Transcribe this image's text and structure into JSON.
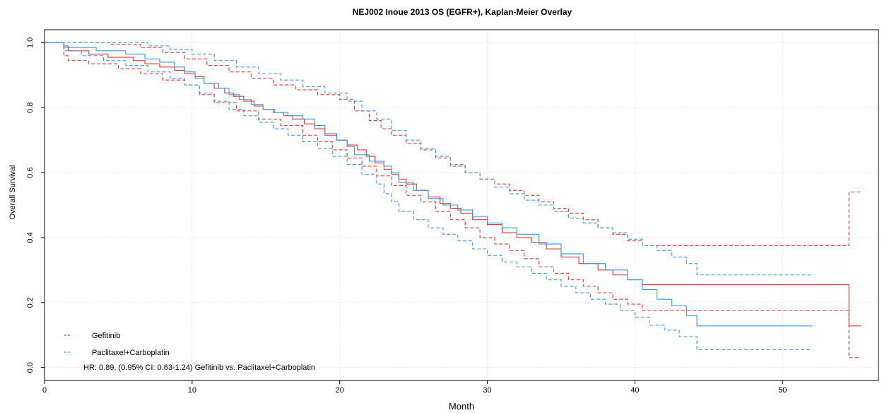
{
  "chart_data": {
    "type": "line",
    "title": "NEJ002 Inoue 2013 OS (EGFR+), Kaplan-Meier Overlay",
    "xlabel": "Month",
    "ylabel": "Overall Survival",
    "xlim": [
      0,
      56.5
    ],
    "ylim": [
      -0.04,
      1.04
    ],
    "xticks": [
      0,
      10,
      20,
      30,
      40,
      50
    ],
    "xtick_labels": [
      "0",
      "10",
      "20",
      "30",
      "40",
      "50"
    ],
    "yticks": [
      0.0,
      0.2,
      0.4,
      0.6,
      0.8,
      1.0
    ],
    "ytick_labels": [
      "0.0",
      "0.2",
      "0.4",
      "0.6",
      "0.8",
      "1.0"
    ],
    "grid": true,
    "legend_position": "bottom-left",
    "annotation": "HR: 0.89, (0.95% CI: 0.63-1.24) Gefitinib vs. Paclitaxel+Carboplatin",
    "series": [
      {
        "name": "Gefitinib",
        "color": "#ee3333",
        "style": "step",
        "x": [
          0,
          1.3,
          1.6,
          3.0,
          4.3,
          6.0,
          6.8,
          7.8,
          8.8,
          9.5,
          10.2,
          10.8,
          11.5,
          12.2,
          12.8,
          13.5,
          14.2,
          14.8,
          15.5,
          16.2,
          16.8,
          17.6,
          18.3,
          19.0,
          19.8,
          20.5,
          21.2,
          21.8,
          22.4,
          23.0,
          23.5,
          24.0,
          24.5,
          25.2,
          26.0,
          26.8,
          27.5,
          28.2,
          29.0,
          30.0,
          31.0,
          32.0,
          33.0,
          34.0,
          35.0,
          36.2,
          37.5,
          38.5,
          39.5,
          40.5,
          54.5,
          55.3
        ],
        "y": [
          1.0,
          0.99,
          0.975,
          0.965,
          0.955,
          0.945,
          0.935,
          0.925,
          0.915,
          0.905,
          0.895,
          0.875,
          0.86,
          0.845,
          0.835,
          0.82,
          0.805,
          0.795,
          0.785,
          0.775,
          0.765,
          0.75,
          0.735,
          0.715,
          0.7,
          0.685,
          0.67,
          0.65,
          0.63,
          0.61,
          0.595,
          0.58,
          0.565,
          0.545,
          0.525,
          0.505,
          0.49,
          0.475,
          0.455,
          0.44,
          0.415,
          0.4,
          0.385,
          0.365,
          0.34,
          0.32,
          0.3,
          0.285,
          0.27,
          0.255,
          0.128,
          0.128
        ]
      },
      {
        "name": "Gefitinib upper CI",
        "color": "#ee3333",
        "style": "dash",
        "x": [
          0,
          1.3,
          2.5,
          4.5,
          6.5,
          8.0,
          9.5,
          11.0,
          12.5,
          14.0,
          15.5,
          17.0,
          18.5,
          20.0,
          21.0,
          22.0,
          22.8,
          23.5,
          24.5,
          25.5,
          26.5,
          27.5,
          28.5,
          29.5,
          30.5,
          31.5,
          32.5,
          33.5,
          34.5,
          35.5,
          36.5,
          37.5,
          38.5,
          39.5,
          40.5,
          54.5,
          55.3
        ],
        "y": [
          1.0,
          1.0,
          1.0,
          0.995,
          0.985,
          0.97,
          0.95,
          0.93,
          0.91,
          0.89,
          0.87,
          0.855,
          0.84,
          0.825,
          0.79,
          0.76,
          0.735,
          0.715,
          0.69,
          0.67,
          0.645,
          0.62,
          0.6,
          0.58,
          0.565,
          0.545,
          0.53,
          0.51,
          0.49,
          0.475,
          0.455,
          0.43,
          0.41,
          0.39,
          0.375,
          0.54,
          0.54
        ]
      },
      {
        "name": "Gefitinib lower CI",
        "color": "#ee3333",
        "style": "dash",
        "x": [
          0,
          1.3,
          1.6,
          3.0,
          5.0,
          6.5,
          8.0,
          9.5,
          10.5,
          11.5,
          13.0,
          14.5,
          16.0,
          17.5,
          18.5,
          19.5,
          20.5,
          21.5,
          22.5,
          23.5,
          24.5,
          25.5,
          26.5,
          27.5,
          28.5,
          29.5,
          30.5,
          31.5,
          32.5,
          33.5,
          34.5,
          35.5,
          36.5,
          37.5,
          38.5,
          39.5,
          40.5,
          54.5,
          55.3
        ],
        "y": [
          1.0,
          0.96,
          0.945,
          0.935,
          0.92,
          0.905,
          0.885,
          0.87,
          0.84,
          0.815,
          0.79,
          0.765,
          0.745,
          0.715,
          0.695,
          0.67,
          0.645,
          0.62,
          0.59,
          0.56,
          0.53,
          0.51,
          0.48,
          0.455,
          0.43,
          0.4,
          0.38,
          0.36,
          0.335,
          0.31,
          0.29,
          0.27,
          0.25,
          0.23,
          0.21,
          0.195,
          0.175,
          0.03,
          0.03
        ]
      },
      {
        "name": "Paclitaxel+Carboplatin",
        "color": "#3399ee",
        "style": "step",
        "x": [
          0,
          1.3,
          3.5,
          5.5,
          6.8,
          7.8,
          8.8,
          9.5,
          10.2,
          10.8,
          11.8,
          12.5,
          13.2,
          14.0,
          14.8,
          15.6,
          16.5,
          17.5,
          18.3,
          19.0,
          19.8,
          20.5,
          21.0,
          22.0,
          23.0,
          23.5,
          24.0,
          25.0,
          26.0,
          27.0,
          28.0,
          29.0,
          30.0,
          31.0,
          32.0,
          33.5,
          35.0,
          36.5,
          38.0,
          39.5,
          40.5,
          41.5,
          42.5,
          43.5,
          44.2,
          52.0
        ],
        "y": [
          1.0,
          0.985,
          0.975,
          0.965,
          0.95,
          0.94,
          0.925,
          0.91,
          0.89,
          0.875,
          0.86,
          0.84,
          0.825,
          0.81,
          0.795,
          0.785,
          0.775,
          0.765,
          0.745,
          0.72,
          0.7,
          0.68,
          0.655,
          0.635,
          0.62,
          0.6,
          0.57,
          0.545,
          0.52,
          0.5,
          0.485,
          0.465,
          0.445,
          0.43,
          0.41,
          0.38,
          0.35,
          0.32,
          0.3,
          0.27,
          0.24,
          0.21,
          0.19,
          0.16,
          0.128,
          0.128
        ]
      },
      {
        "name": "Paclitaxel+Carboplatin upper CI",
        "color": "#3399ee",
        "style": "dash",
        "x": [
          0,
          3.0,
          5.0,
          7.0,
          8.5,
          10.0,
          11.5,
          13.0,
          14.5,
          16.0,
          17.5,
          19.0,
          20.5,
          21.5,
          22.5,
          23.5,
          24.5,
          25.5,
          26.5,
          27.5,
          28.5,
          29.5,
          30.5,
          31.5,
          32.5,
          33.5,
          34.5,
          35.5,
          36.5,
          37.5,
          38.5,
          39.5,
          40.5,
          41.5,
          42.5,
          43.5,
          44.2,
          52.0
        ],
        "y": [
          1.0,
          1.0,
          1.0,
          0.99,
          0.98,
          0.965,
          0.945,
          0.925,
          0.905,
          0.885,
          0.865,
          0.845,
          0.82,
          0.79,
          0.765,
          0.73,
          0.7,
          0.675,
          0.65,
          0.625,
          0.6,
          0.58,
          0.555,
          0.535,
          0.515,
          0.5,
          0.48,
          0.46,
          0.445,
          0.43,
          0.415,
          0.395,
          0.375,
          0.36,
          0.34,
          0.32,
          0.285,
          0.285
        ]
      },
      {
        "name": "Paclitaxel+Carboplatin lower CI",
        "color": "#3399ee",
        "style": "dash",
        "x": [
          0,
          1.3,
          2.5,
          4.0,
          5.5,
          7.0,
          8.5,
          9.5,
          10.5,
          11.5,
          12.5,
          13.5,
          14.5,
          15.5,
          16.5,
          17.5,
          18.5,
          19.5,
          20.5,
          21.5,
          22.5,
          23.0,
          23.5,
          24.0,
          25.0,
          26.0,
          27.0,
          28.0,
          29.0,
          30.0,
          31.0,
          32.0,
          33.0,
          34.0,
          35.0,
          36.0,
          37.0,
          38.0,
          39.0,
          40.0,
          41.0,
          42.0,
          43.0,
          44.2,
          52.0
        ],
        "y": [
          1.0,
          0.975,
          0.96,
          0.945,
          0.93,
          0.91,
          0.89,
          0.87,
          0.845,
          0.82,
          0.795,
          0.775,
          0.755,
          0.735,
          0.715,
          0.695,
          0.675,
          0.65,
          0.625,
          0.595,
          0.565,
          0.535,
          0.51,
          0.48,
          0.455,
          0.43,
          0.41,
          0.39,
          0.365,
          0.345,
          0.325,
          0.31,
          0.29,
          0.27,
          0.25,
          0.23,
          0.21,
          0.195,
          0.175,
          0.155,
          0.13,
          0.115,
          0.095,
          0.055,
          0.055
        ]
      }
    ],
    "legend": [
      {
        "label": "Gefitinib",
        "color": "#ee3333"
      },
      {
        "label": "Paclitaxel+Carboplatin",
        "color": "#3399ee"
      }
    ]
  }
}
